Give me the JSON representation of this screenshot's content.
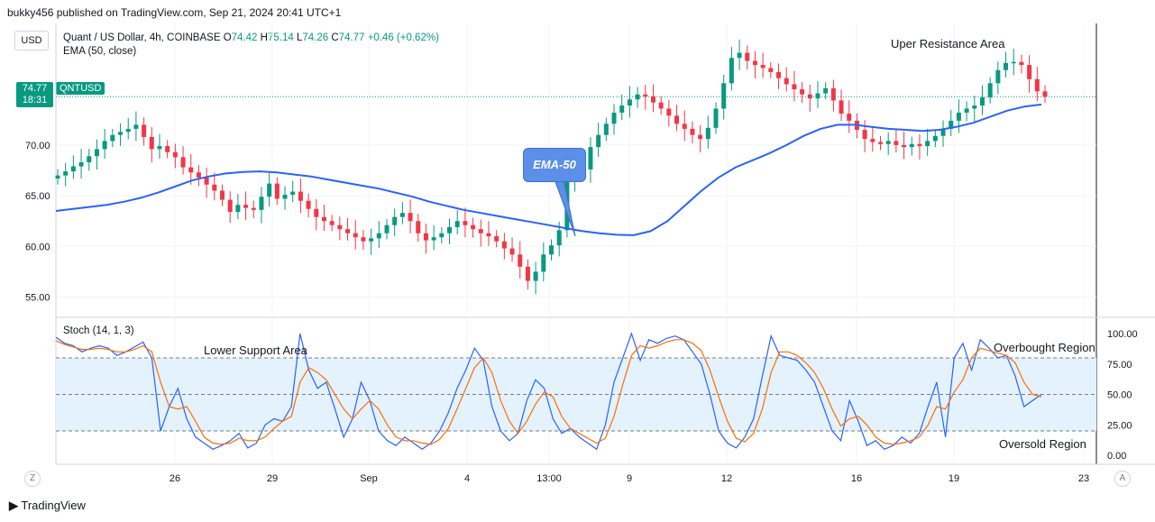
{
  "header": {
    "published": "bukky456 published on TradingView.com, Sep 21, 2024 20:41 UTC+1"
  },
  "currency_button": "USD",
  "legend": {
    "symbol": "Quant / US Dollar, 4h, COINBASE",
    "o_label": "O",
    "o": "74.42",
    "h_label": "H",
    "h": "75.14",
    "l_label": "L",
    "l": "74.26",
    "c_label": "C",
    "c": "74.77",
    "change": "+0.46 (+0.62%)",
    "ema": "EMA (50, close)"
  },
  "price_badge": {
    "price": "74.77",
    "countdown": "18:31",
    "symbol": "QNTUSD"
  },
  "stoch_label": "Stoch (14, 1, 3)",
  "annotations": {
    "resistance": "Uper Resistance Area",
    "support": "Lower Support Area",
    "overbought": "Overbought Region",
    "oversold": "Oversold Region",
    "callout": "EMA-50"
  },
  "footer": {
    "brand": "TradingView"
  },
  "corner_buttons": {
    "left": "Z",
    "right": "A"
  },
  "colors": {
    "up": "#089981",
    "down": "#f23645",
    "ema": "#2962ff",
    "stoch_k": "#2962ff",
    "stoch_d": "#ff6d00",
    "band": "#e3f2fd"
  },
  "chart_data": [
    {
      "type": "candlestick",
      "interval": "4h",
      "ylim": [
        53,
        82
      ],
      "y_ticks": [
        "55.00",
        "60.00",
        "65.00",
        "70.00"
      ],
      "x_ticks": [
        "26",
        "29",
        "Sep",
        "4",
        "13:00",
        "9",
        "12",
        "16",
        "19",
        "23"
      ],
      "last_price": 74.77,
      "close_series": [
        67,
        67.4,
        67.9,
        68.3,
        68.9,
        69.6,
        70.4,
        71.0,
        71.3,
        71.6,
        72.0,
        70.8,
        69.6,
        69.9,
        69.3,
        68.8,
        67.8,
        67.3,
        66.8,
        66.1,
        65.5,
        64.6,
        63.4,
        64.1,
        63.8,
        63.6,
        64.9,
        66.2,
        64.7,
        65.1,
        65.4,
        64.5,
        63.7,
        62.9,
        62.5,
        62.1,
        61.7,
        61.3,
        60.9,
        60.5,
        60.8,
        61.3,
        62.1,
        62.9,
        63.3,
        62.5,
        61.3,
        60.6,
        60.9,
        61.3,
        61.9,
        62.5,
        62.1,
        61.7,
        61.3,
        61.0,
        60.5,
        59.8,
        59.2,
        58.0,
        56.6,
        57.5,
        59.2,
        60.1,
        61.6,
        66.6,
        68.4,
        67.6,
        69.8,
        71.0,
        72.1,
        73.2,
        73.9,
        74.5,
        75.0,
        74.8,
        74.2,
        73.6,
        72.9,
        72.1,
        71.6,
        71.0,
        70.6,
        71.7,
        73.6,
        76.1,
        78.6,
        79.1,
        78.3,
        77.9,
        77.6,
        77.2,
        76.6,
        76.0,
        75.5,
        75.0,
        74.6,
        75.1,
        75.6,
        74.4,
        73.1,
        72.4,
        71.5,
        70.6,
        70.3,
        70.1,
        70.4,
        70.0,
        69.8,
        70.1,
        69.9,
        70.4,
        70.9,
        71.6,
        72.4,
        73.2,
        73.6,
        73.9,
        74.7,
        76.1,
        77.4,
        78.1,
        78.2,
        77.9,
        76.5,
        75.3,
        74.77
      ],
      "ema50_series": [
        63.5,
        63.7,
        63.9,
        64.1,
        64.4,
        64.8,
        65.3,
        65.9,
        66.5,
        66.9,
        67.2,
        67.35,
        67.4,
        67.3,
        67.1,
        66.9,
        66.6,
        66.3,
        66.0,
        65.7,
        65.3,
        64.9,
        64.4,
        64.0,
        63.6,
        63.3,
        63.0,
        62.7,
        62.4,
        62.1,
        61.8,
        61.5,
        61.3,
        61.15,
        61.1,
        61.5,
        62.5,
        64.0,
        65.5,
        66.8,
        67.8,
        68.5,
        69.2,
        70.0,
        70.9,
        71.6,
        72.0,
        72.0,
        71.8,
        71.6,
        71.5,
        71.4,
        71.5,
        71.8,
        72.2,
        72.8,
        73.4,
        73.8,
        74.0
      ],
      "price_range": [
        55.0,
        80.0
      ],
      "annotation": "Uper Resistance Area"
    },
    {
      "type": "line",
      "name": "Stoch (14, 1, 3)",
      "ylim": [
        0,
        100
      ],
      "y_ticks": [
        "100.00",
        "75.00",
        "50.00",
        "25.00",
        "0.00"
      ],
      "levels": [
        80,
        50,
        20
      ],
      "series": [
        {
          "name": "%K",
          "values": [
            97,
            92,
            90,
            85,
            88,
            90,
            88,
            82,
            85,
            89,
            93,
            80,
            20,
            40,
            55,
            30,
            15,
            10,
            5,
            8,
            12,
            18,
            6,
            10,
            25,
            30,
            28,
            40,
            100,
            70,
            55,
            60,
            38,
            15,
            30,
            60,
            45,
            20,
            12,
            8,
            15,
            10,
            5,
            10,
            20,
            35,
            55,
            70,
            88,
            78,
            40,
            20,
            12,
            18,
            45,
            62,
            55,
            30,
            18,
            22,
            15,
            10,
            5,
            25,
            60,
            80,
            100,
            78,
            95,
            92,
            96,
            98,
            95,
            85,
            75,
            50,
            20,
            10,
            6,
            15,
            30,
            65,
            98,
            82,
            80,
            78,
            70,
            60,
            40,
            20,
            12,
            45,
            28,
            8,
            12,
            5,
            8,
            15,
            10,
            18,
            40,
            60,
            15,
            80,
            92,
            70,
            95,
            88,
            80,
            82,
            65,
            40,
            45,
            50
          ]
        },
        {
          "name": "%D",
          "values": [
            94,
            91,
            89,
            87,
            87,
            88,
            87,
            85,
            85,
            87,
            90,
            85,
            60,
            40,
            38,
            40,
            28,
            15,
            10,
            9,
            10,
            14,
            12,
            12,
            15,
            22,
            28,
            32,
            60,
            72,
            68,
            62,
            50,
            38,
            30,
            38,
            45,
            38,
            25,
            15,
            12,
            12,
            10,
            9,
            13,
            22,
            38,
            55,
            72,
            80,
            68,
            45,
            28,
            18,
            28,
            42,
            52,
            48,
            32,
            22,
            18,
            14,
            10,
            14,
            32,
            58,
            82,
            90,
            88,
            90,
            93,
            95,
            95,
            92,
            86,
            70,
            48,
            28,
            14,
            11,
            18,
            38,
            68,
            85,
            85,
            82,
            76,
            68,
            55,
            38,
            24,
            30,
            32,
            25,
            15,
            10,
            9,
            10,
            12,
            15,
            25,
            40,
            38,
            52,
            62,
            80,
            88,
            86,
            84,
            82,
            76,
            60,
            50,
            48
          ]
        }
      ]
    }
  ]
}
